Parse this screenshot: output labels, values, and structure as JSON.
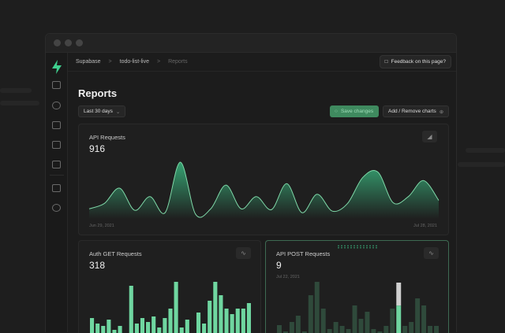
{
  "breadcrumb": [
    "Supabase",
    "todo-list-live",
    "Reports"
  ],
  "feedback_label": "Feedback on this page?",
  "page_title": "Reports",
  "date_filter": "Last 30 days",
  "save_label": "Save changes",
  "add_remove_label": "Add / Remove charts",
  "colors": {
    "accent": "#3ecf8e",
    "button_green": "#3f8a5f",
    "background": "#1c1c1c"
  },
  "sidebar_icons": [
    "supabase-logo-icon",
    "table-editor-icon",
    "users-icon",
    "storage-icon",
    "terminal-icon",
    "database-icon",
    "docs-icon",
    "settings-icon"
  ],
  "chart_data": [
    {
      "type": "area",
      "title": "API Requests",
      "total": "916",
      "x_start_label": "Jun 29, 2021",
      "x_end_label": "Jul 28, 2021",
      "values": [
        9,
        16,
        36,
        7,
        25,
        4,
        70,
        2,
        9,
        40,
        9,
        25,
        8,
        42,
        4,
        28,
        6,
        16,
        50,
        57,
        17,
        25,
        46,
        20
      ]
    },
    {
      "type": "bar",
      "title": "Auth GET Requests",
      "total": "318",
      "values": [
        20,
        13,
        10,
        18,
        5,
        10,
        1,
        61,
        13,
        20,
        15,
        22,
        8,
        20,
        32,
        66,
        8,
        18,
        1,
        27,
        13,
        42,
        66,
        49,
        32,
        25,
        32,
        32,
        39
      ]
    },
    {
      "type": "bar",
      "title": "API POST Requests",
      "total": "9",
      "tooltip_date": "Jul 22, 2021",
      "highlighted_index": 19,
      "values": [
        11,
        3,
        15,
        23,
        3,
        49,
        66,
        32,
        6,
        15,
        10,
        6,
        36,
        19,
        28,
        6,
        3,
        10,
        32,
        65,
        10,
        15,
        45,
        36,
        10,
        10
      ]
    }
  ]
}
